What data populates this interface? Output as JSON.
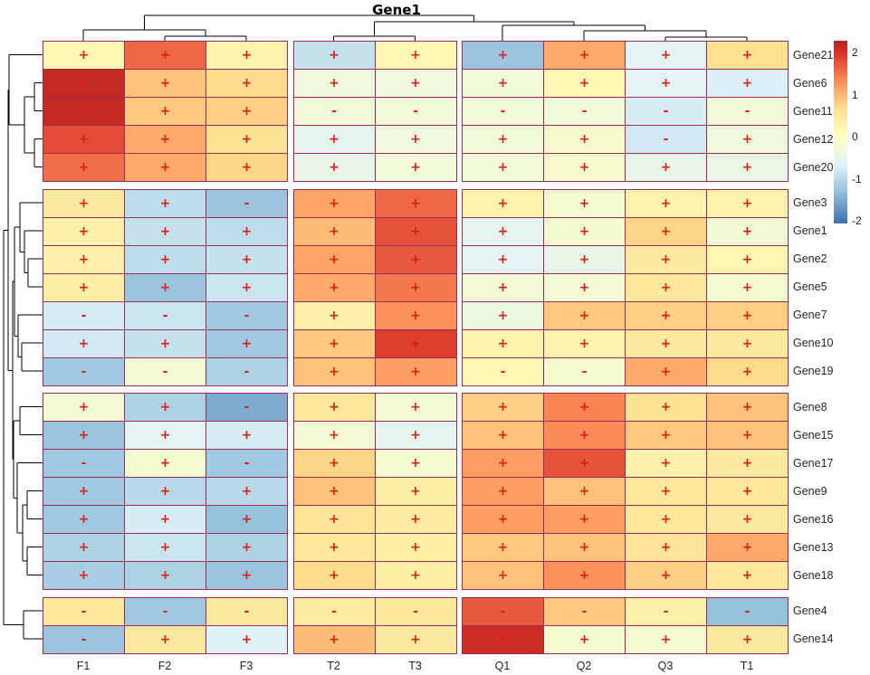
{
  "title": "Gene1",
  "legend": {
    "ticks": [
      {
        "label": "2",
        "value": 2
      },
      {
        "label": "1",
        "value": 1
      },
      {
        "label": "0",
        "value": 0
      },
      {
        "label": "-1",
        "value": -1
      },
      {
        "label": "-2",
        "value": -2
      }
    ]
  },
  "colors": {
    "cell_border": "#9b2c55",
    "sign": "#dc1d18",
    "dendrogram": "#000000",
    "label_text": "#262626"
  },
  "chart_data": {
    "type": "heatmap",
    "title": "Gene1",
    "legend_range": [
      -2,
      2
    ],
    "columns": [
      "F1",
      "F2",
      "F3",
      "T2",
      "T3",
      "Q1",
      "Q2",
      "Q3",
      "T1"
    ],
    "column_group_sizes": [
      3,
      2,
      4
    ],
    "row_group_sizes": [
      5,
      7,
      7,
      2
    ],
    "colormap_stops": [
      {
        "v": -2,
        "c": "#4575b4"
      },
      {
        "v": -1.333,
        "c": "#91bfdb"
      },
      {
        "v": -0.667,
        "c": "#e0f3f8"
      },
      {
        "v": 0,
        "c": "#ffffbf"
      },
      {
        "v": 0.667,
        "c": "#fee090"
      },
      {
        "v": 1.333,
        "c": "#fc8d59"
      },
      {
        "v": 2,
        "c": "#d73027"
      },
      {
        "v": 2.2,
        "c": "#b2241d"
      }
    ],
    "rows": [
      {
        "name": "Gene21",
        "values": [
          0.2,
          1.6,
          0.25,
          -0.9,
          0.2,
          -1.25,
          1.1,
          -0.6,
          0.6
        ],
        "signs": [
          "+",
          "+",
          "+",
          "+",
          "+",
          "+",
          "+",
          "+",
          "+"
        ]
      },
      {
        "name": "Gene6",
        "values": [
          2.1,
          0.9,
          0.7,
          -0.35,
          -0.35,
          -0.3,
          0.15,
          -0.6,
          -0.7
        ],
        "signs": [
          "+",
          "+",
          "+",
          "+",
          "+",
          "+",
          "+",
          "+",
          "+"
        ]
      },
      {
        "name": "Gene11",
        "values": [
          2.1,
          0.85,
          0.8,
          -0.3,
          -0.3,
          -0.3,
          -0.3,
          -0.75,
          -0.3
        ],
        "signs": [
          "+",
          "+",
          "+",
          "-",
          "-",
          "-",
          "-",
          "-",
          "-"
        ]
      },
      {
        "name": "Gene12",
        "values": [
          1.8,
          1.1,
          0.6,
          -0.55,
          -0.35,
          -0.3,
          -0.15,
          -0.8,
          -0.35
        ],
        "signs": [
          "+",
          "+",
          "+",
          "+",
          "+",
          "+",
          "+",
          "-",
          "+"
        ]
      },
      {
        "name": "Gene20",
        "values": [
          1.55,
          1.1,
          0.75,
          -0.5,
          -0.3,
          -0.3,
          -0.15,
          -0.5,
          -0.45
        ],
        "signs": [
          "+",
          "+",
          "+",
          "+",
          "+",
          "+",
          "+",
          "+",
          "+"
        ]
      },
      {
        "name": "Gene3",
        "values": [
          0.45,
          -0.95,
          -1.25,
          1.15,
          1.6,
          0.25,
          -0.2,
          0.25,
          0.25
        ],
        "signs": [
          "+",
          "+",
          "-",
          "+",
          "+",
          "+",
          "+",
          "+",
          "+"
        ]
      },
      {
        "name": "Gene1",
        "values": [
          0.3,
          -0.9,
          -0.95,
          0.95,
          1.75,
          -0.55,
          -0.2,
          0.75,
          -0.25
        ],
        "signs": [
          "+",
          "+",
          "+",
          "+",
          "+",
          "+",
          "+",
          "+",
          "+"
        ]
      },
      {
        "name": "Gene2",
        "values": [
          0.3,
          -0.95,
          -0.9,
          1.15,
          1.7,
          -0.6,
          -0.5,
          0.45,
          0.2
        ],
        "signs": [
          "+",
          "+",
          "+",
          "+",
          "+",
          "+",
          "+",
          "+",
          "+"
        ]
      },
      {
        "name": "Gene5",
        "values": [
          0.35,
          -1.25,
          -0.85,
          1.1,
          1.5,
          -0.25,
          -0.25,
          0.5,
          -0.2
        ],
        "signs": [
          "+",
          "+",
          "+",
          "+",
          "+",
          "+",
          "+",
          "+",
          "+"
        ]
      },
      {
        "name": "Gene7",
        "values": [
          -0.75,
          -0.85,
          -1.2,
          0.3,
          1.3,
          -0.4,
          0.85,
          0.8,
          0.8
        ],
        "signs": [
          "-",
          "-",
          "-",
          "+",
          "+",
          "+",
          "+",
          "+",
          "+"
        ]
      },
      {
        "name": "Gene10",
        "values": [
          -0.8,
          -0.9,
          -1.2,
          0.85,
          1.9,
          0.25,
          0.25,
          0.45,
          0.45
        ],
        "signs": [
          "+",
          "+",
          "+",
          "+",
          "+",
          "+",
          "+",
          "+",
          "+"
        ]
      },
      {
        "name": "Gene19",
        "values": [
          -1.2,
          -0.25,
          -1.1,
          0.9,
          1.2,
          0.2,
          -0.2,
          1.1,
          0.7
        ],
        "signs": [
          "-",
          "-",
          "-",
          "+",
          "+",
          "-",
          "-",
          "+",
          "+"
        ]
      },
      {
        "name": "Gene8",
        "values": [
          -0.25,
          -1.1,
          -1.5,
          0.5,
          -0.25,
          0.8,
          1.4,
          0.6,
          0.9
        ],
        "signs": [
          "+",
          "+",
          "-",
          "+",
          "+",
          "+",
          "+",
          "+",
          "+"
        ]
      },
      {
        "name": "Gene15",
        "values": [
          -1.25,
          -0.6,
          -0.75,
          -0.25,
          -0.55,
          0.9,
          1.35,
          0.85,
          0.9
        ],
        "signs": [
          "+",
          "+",
          "+",
          "+",
          "+",
          "+",
          "+",
          "+",
          "+"
        ]
      },
      {
        "name": "Gene17",
        "values": [
          -1.2,
          -0.2,
          -1.2,
          0.75,
          -0.2,
          1.2,
          1.75,
          0.3,
          0.45
        ],
        "signs": [
          "-",
          "+",
          "-",
          "+",
          "+",
          "+",
          "+",
          "+",
          "+"
        ]
      },
      {
        "name": "Gene9",
        "values": [
          -1.2,
          -1.0,
          -1.0,
          0.9,
          0.35,
          1.2,
          0.9,
          0.5,
          0.5
        ],
        "signs": [
          "+",
          "+",
          "+",
          "+",
          "+",
          "+",
          "+",
          "+",
          "+"
        ]
      },
      {
        "name": "Gene16",
        "values": [
          -1.2,
          -0.75,
          -1.3,
          0.55,
          0.4,
          1.2,
          1.2,
          0.5,
          0.45
        ],
        "signs": [
          "+",
          "+",
          "+",
          "+",
          "+",
          "+",
          "+",
          "+",
          "+"
        ]
      },
      {
        "name": "Gene13",
        "values": [
          -1.1,
          -0.85,
          -1.1,
          0.5,
          0.35,
          0.85,
          0.9,
          0.55,
          1.1
        ],
        "signs": [
          "+",
          "+",
          "+",
          "+",
          "+",
          "+",
          "+",
          "+",
          "+"
        ]
      },
      {
        "name": "Gene18",
        "values": [
          -1.15,
          -1.1,
          -1.25,
          0.7,
          0.35,
          0.9,
          1.3,
          0.8,
          0.5
        ],
        "signs": [
          "+",
          "+",
          "+",
          "+",
          "+",
          "+",
          "+",
          "+",
          "+"
        ]
      },
      {
        "name": "Gene4",
        "values": [
          0.5,
          -1.2,
          0.45,
          0.4,
          0.5,
          1.7,
          0.85,
          0.3,
          -1.3
        ],
        "signs": [
          "-",
          "-",
          "-",
          "-",
          "-",
          "-",
          "-",
          "-",
          "-"
        ]
      },
      {
        "name": "Gene14",
        "values": [
          -1.25,
          0.45,
          -0.65,
          0.95,
          0.45,
          2.05,
          -0.2,
          -0.2,
          0.45
        ],
        "signs": [
          "-",
          "+",
          "+",
          "+",
          "+",
          "+",
          "+",
          "+",
          "+"
        ]
      }
    ],
    "col_dendrogram": {
      "pos": 17,
      "children": [
        {
          "pos": 33,
          "children": [
            "F1",
            {
              "pos": 40,
              "children": [
                "F2",
                "F3"
              ]
            }
          ]
        },
        {
          "pos": 24,
          "children": [
            {
              "pos": 40,
              "children": [
                "T2",
                "T3"
              ]
            },
            {
              "pos": 28,
              "children": [
                "Q1",
                {
                  "pos": 34,
                  "children": [
                    "Q2",
                    {
                      "pos": 41,
                      "children": [
                        "Q3",
                        "T1"
                      ]
                    }
                  ]
                }
              ]
            }
          ]
        }
      ]
    },
    "row_dendrogram": {
      "pos": 4,
      "children": [
        {
          "pos": 9,
          "children": [
            {
              "pos": 10,
              "children": [
                "Gene21",
                {
                  "pos": 27,
                  "children": [
                    {
                      "pos": 38,
                      "children": [
                        "Gene6",
                        "Gene11"
                      ]
                    },
                    {
                      "pos": 38,
                      "children": [
                        "Gene12",
                        "Gene20"
                      ]
                    }
                  ]
                }
              ]
            },
            {
              "pos": 14,
              "children": [
                {
                  "pos": 16,
                  "children": [
                    {
                      "pos": 22,
                      "children": [
                        "Gene3",
                        {
                          "pos": 27,
                          "children": [
                            "Gene1",
                            {
                              "pos": 31,
                              "children": [
                                "Gene2",
                                "Gene5"
                              ]
                            }
                          ]
                        }
                      ]
                    },
                    {
                      "pos": 20,
                      "children": [
                        "Gene7",
                        {
                          "pos": 24,
                          "children": [
                            "Gene10",
                            "Gene19"
                          ]
                        }
                      ]
                    }
                  ]
                },
                {
                  "pos": 15,
                  "children": [
                    {
                      "pos": 22,
                      "children": [
                        "Gene8",
                        "Gene15"
                      ]
                    },
                    {
                      "pos": 19,
                      "children": [
                        "Gene17",
                        {
                          "pos": 25,
                          "children": [
                            {
                              "pos": 30,
                              "children": [
                                "Gene9",
                                "Gene16"
                              ]
                            },
                            {
                              "pos": 30,
                              "children": [
                                "Gene13",
                                "Gene18"
                              ]
                            }
                          ]
                        }
                      ]
                    }
                  ]
                }
              ]
            }
          ]
        },
        {
          "pos": 26,
          "children": [
            "Gene4",
            "Gene14"
          ]
        }
      ]
    }
  }
}
